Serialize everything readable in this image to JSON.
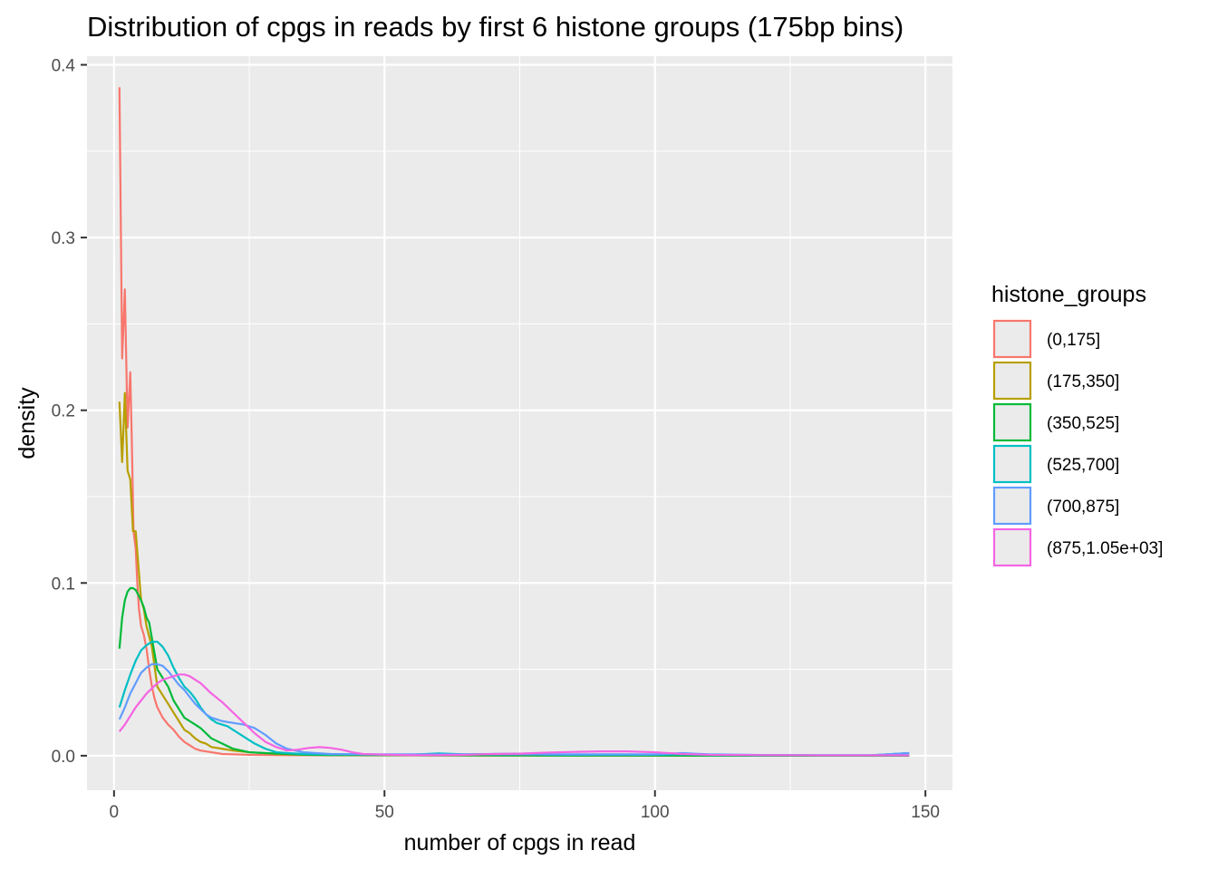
{
  "chart_data": {
    "type": "line",
    "title": "Distribution of cpgs in reads by first 6 histone groups (175bp bins)",
    "xlabel": "number of cpgs in read",
    "ylabel": "density",
    "xlim": [
      -5,
      155
    ],
    "ylim": [
      -0.02,
      0.405
    ],
    "x_ticks": [
      0,
      50,
      100,
      150
    ],
    "x_tick_labels": [
      "0",
      "50",
      "100",
      "150"
    ],
    "y_ticks": [
      0.0,
      0.1,
      0.2,
      0.3,
      0.4
    ],
    "y_tick_labels": [
      "0.0",
      "0.1",
      "0.2",
      "0.3",
      "0.4"
    ],
    "grid": true,
    "background": "#ebebeb",
    "legend": {
      "title": "histone_groups",
      "position": "right"
    },
    "series": [
      {
        "name": "(0,175]",
        "color": "#F8766D",
        "x": [
          1,
          1.5,
          2,
          2.5,
          3,
          3.3,
          3.6,
          4,
          4.3,
          4.6,
          5,
          5.5,
          6,
          6.5,
          7,
          7.5,
          8,
          9,
          10,
          11,
          12,
          13,
          14,
          15,
          16,
          18,
          20,
          25,
          30,
          40,
          60,
          80,
          100,
          120,
          147
        ],
        "y": [
          0.387,
          0.23,
          0.27,
          0.19,
          0.222,
          0.18,
          0.13,
          0.12,
          0.1,
          0.085,
          0.075,
          0.07,
          0.062,
          0.05,
          0.04,
          0.033,
          0.028,
          0.022,
          0.018,
          0.015,
          0.011,
          0.008,
          0.006,
          0.004,
          0.003,
          0.002,
          0.001,
          0.0005,
          0.0003,
          0.0002,
          0.0001,
          0.0001,
          0,
          0,
          0
        ]
      },
      {
        "name": "(175,350]",
        "color": "#B79F00",
        "x": [
          1,
          1.5,
          2,
          2.5,
          3,
          3.5,
          4,
          4.5,
          5,
          5.5,
          6,
          7,
          8,
          9,
          10,
          11,
          12,
          13,
          14,
          15,
          16,
          17,
          18,
          20,
          22,
          25,
          30,
          35,
          40,
          60,
          80,
          100,
          120,
          147
        ],
        "y": [
          0.205,
          0.17,
          0.21,
          0.165,
          0.16,
          0.13,
          0.13,
          0.11,
          0.09,
          0.085,
          0.075,
          0.063,
          0.04,
          0.035,
          0.03,
          0.025,
          0.02,
          0.015,
          0.013,
          0.01,
          0.008,
          0.007,
          0.005,
          0.004,
          0.003,
          0.002,
          0.001,
          0.0005,
          0.0003,
          0.0002,
          0.0001,
          0.0001,
          0,
          0
        ]
      },
      {
        "name": "(350,525]",
        "color": "#00BA38",
        "x": [
          1,
          1.5,
          2,
          2.5,
          3,
          3.5,
          4,
          4.5,
          5,
          5.5,
          6,
          6.5,
          7,
          8,
          9,
          10,
          11,
          12,
          13,
          14,
          15,
          16,
          18,
          20,
          22,
          25,
          28,
          32,
          36,
          40,
          50,
          60,
          80,
          100,
          120,
          147
        ],
        "y": [
          0.062,
          0.08,
          0.09,
          0.095,
          0.097,
          0.097,
          0.096,
          0.093,
          0.09,
          0.086,
          0.08,
          0.077,
          0.068,
          0.05,
          0.045,
          0.04,
          0.032,
          0.027,
          0.022,
          0.02,
          0.018,
          0.016,
          0.01,
          0.007,
          0.004,
          0.002,
          0.0015,
          0.001,
          0.0005,
          0.0004,
          0.0003,
          0.0002,
          0.0001,
          0.0001,
          0,
          0
        ]
      },
      {
        "name": "(525,700]",
        "color": "#00BFC4",
        "x": [
          1,
          2,
          3,
          4,
          5,
          6,
          7,
          8,
          9,
          10,
          11,
          12,
          13,
          14,
          15,
          16,
          17,
          18,
          19,
          20,
          21,
          22,
          24,
          26,
          28,
          30,
          32,
          35,
          40,
          45,
          50,
          55,
          60,
          65,
          70,
          75,
          80,
          85,
          90,
          95,
          100,
          105,
          110,
          120,
          130,
          140,
          147
        ],
        "y": [
          0.028,
          0.038,
          0.047,
          0.055,
          0.061,
          0.064,
          0.066,
          0.066,
          0.063,
          0.058,
          0.051,
          0.045,
          0.04,
          0.037,
          0.033,
          0.028,
          0.024,
          0.021,
          0.019,
          0.018,
          0.017,
          0.015,
          0.011,
          0.007,
          0.004,
          0.002,
          0.0015,
          0.001,
          0.0008,
          0.0008,
          0.0005,
          0.0006,
          0.0013,
          0.0008,
          0.001,
          0.0012,
          0.0006,
          0.0005,
          0.0005,
          0.0005,
          0.0005,
          0.0008,
          0.0004,
          0.0003,
          0.0003,
          0.0003,
          0.0015
        ]
      },
      {
        "name": "(700,875]",
        "color": "#619CFF",
        "x": [
          1,
          2,
          3,
          4,
          5,
          6,
          7,
          8,
          9,
          10,
          11,
          12,
          13,
          14,
          15,
          16,
          17,
          18,
          19,
          20,
          22,
          24,
          26,
          28,
          30,
          32,
          35,
          40,
          45,
          50,
          60,
          70,
          80,
          90,
          100,
          105,
          110,
          120,
          130,
          140,
          147
        ],
        "y": [
          0.021,
          0.028,
          0.036,
          0.042,
          0.048,
          0.051,
          0.053,
          0.053,
          0.052,
          0.049,
          0.045,
          0.041,
          0.038,
          0.034,
          0.03,
          0.027,
          0.024,
          0.022,
          0.021,
          0.02,
          0.019,
          0.018,
          0.016,
          0.012,
          0.007,
          0.004,
          0.002,
          0.001,
          0.0008,
          0.0008,
          0.0008,
          0.0008,
          0.0008,
          0.0008,
          0.0008,
          0.0015,
          0.0008,
          0.0004,
          0.0003,
          0.0003,
          0.0015
        ]
      },
      {
        "name": "(875,1.05e+03]",
        "color": "#F564E3",
        "x": [
          1,
          2,
          3,
          4,
          5,
          6,
          7,
          8,
          9,
          10,
          11,
          12,
          13,
          14,
          15,
          16,
          17,
          18,
          20,
          22,
          24,
          26,
          28,
          30,
          32,
          34,
          36,
          38,
          40,
          42,
          44,
          46,
          50,
          55,
          60,
          65,
          70,
          75,
          80,
          85,
          90,
          95,
          100,
          105,
          110,
          120,
          130,
          140,
          147
        ],
        "y": [
          0.014,
          0.018,
          0.023,
          0.028,
          0.032,
          0.036,
          0.039,
          0.042,
          0.044,
          0.045,
          0.046,
          0.047,
          0.047,
          0.046,
          0.044,
          0.042,
          0.039,
          0.036,
          0.031,
          0.025,
          0.019,
          0.013,
          0.008,
          0.005,
          0.003,
          0.0035,
          0.0045,
          0.005,
          0.0045,
          0.0035,
          0.002,
          0.001,
          0.0006,
          0.0003,
          0.0003,
          0.0005,
          0.001,
          0.0012,
          0.0018,
          0.0022,
          0.0025,
          0.0025,
          0.002,
          0.001,
          0.0005,
          0.0003,
          0.0002,
          0.0002,
          0.0002
        ]
      }
    ]
  }
}
